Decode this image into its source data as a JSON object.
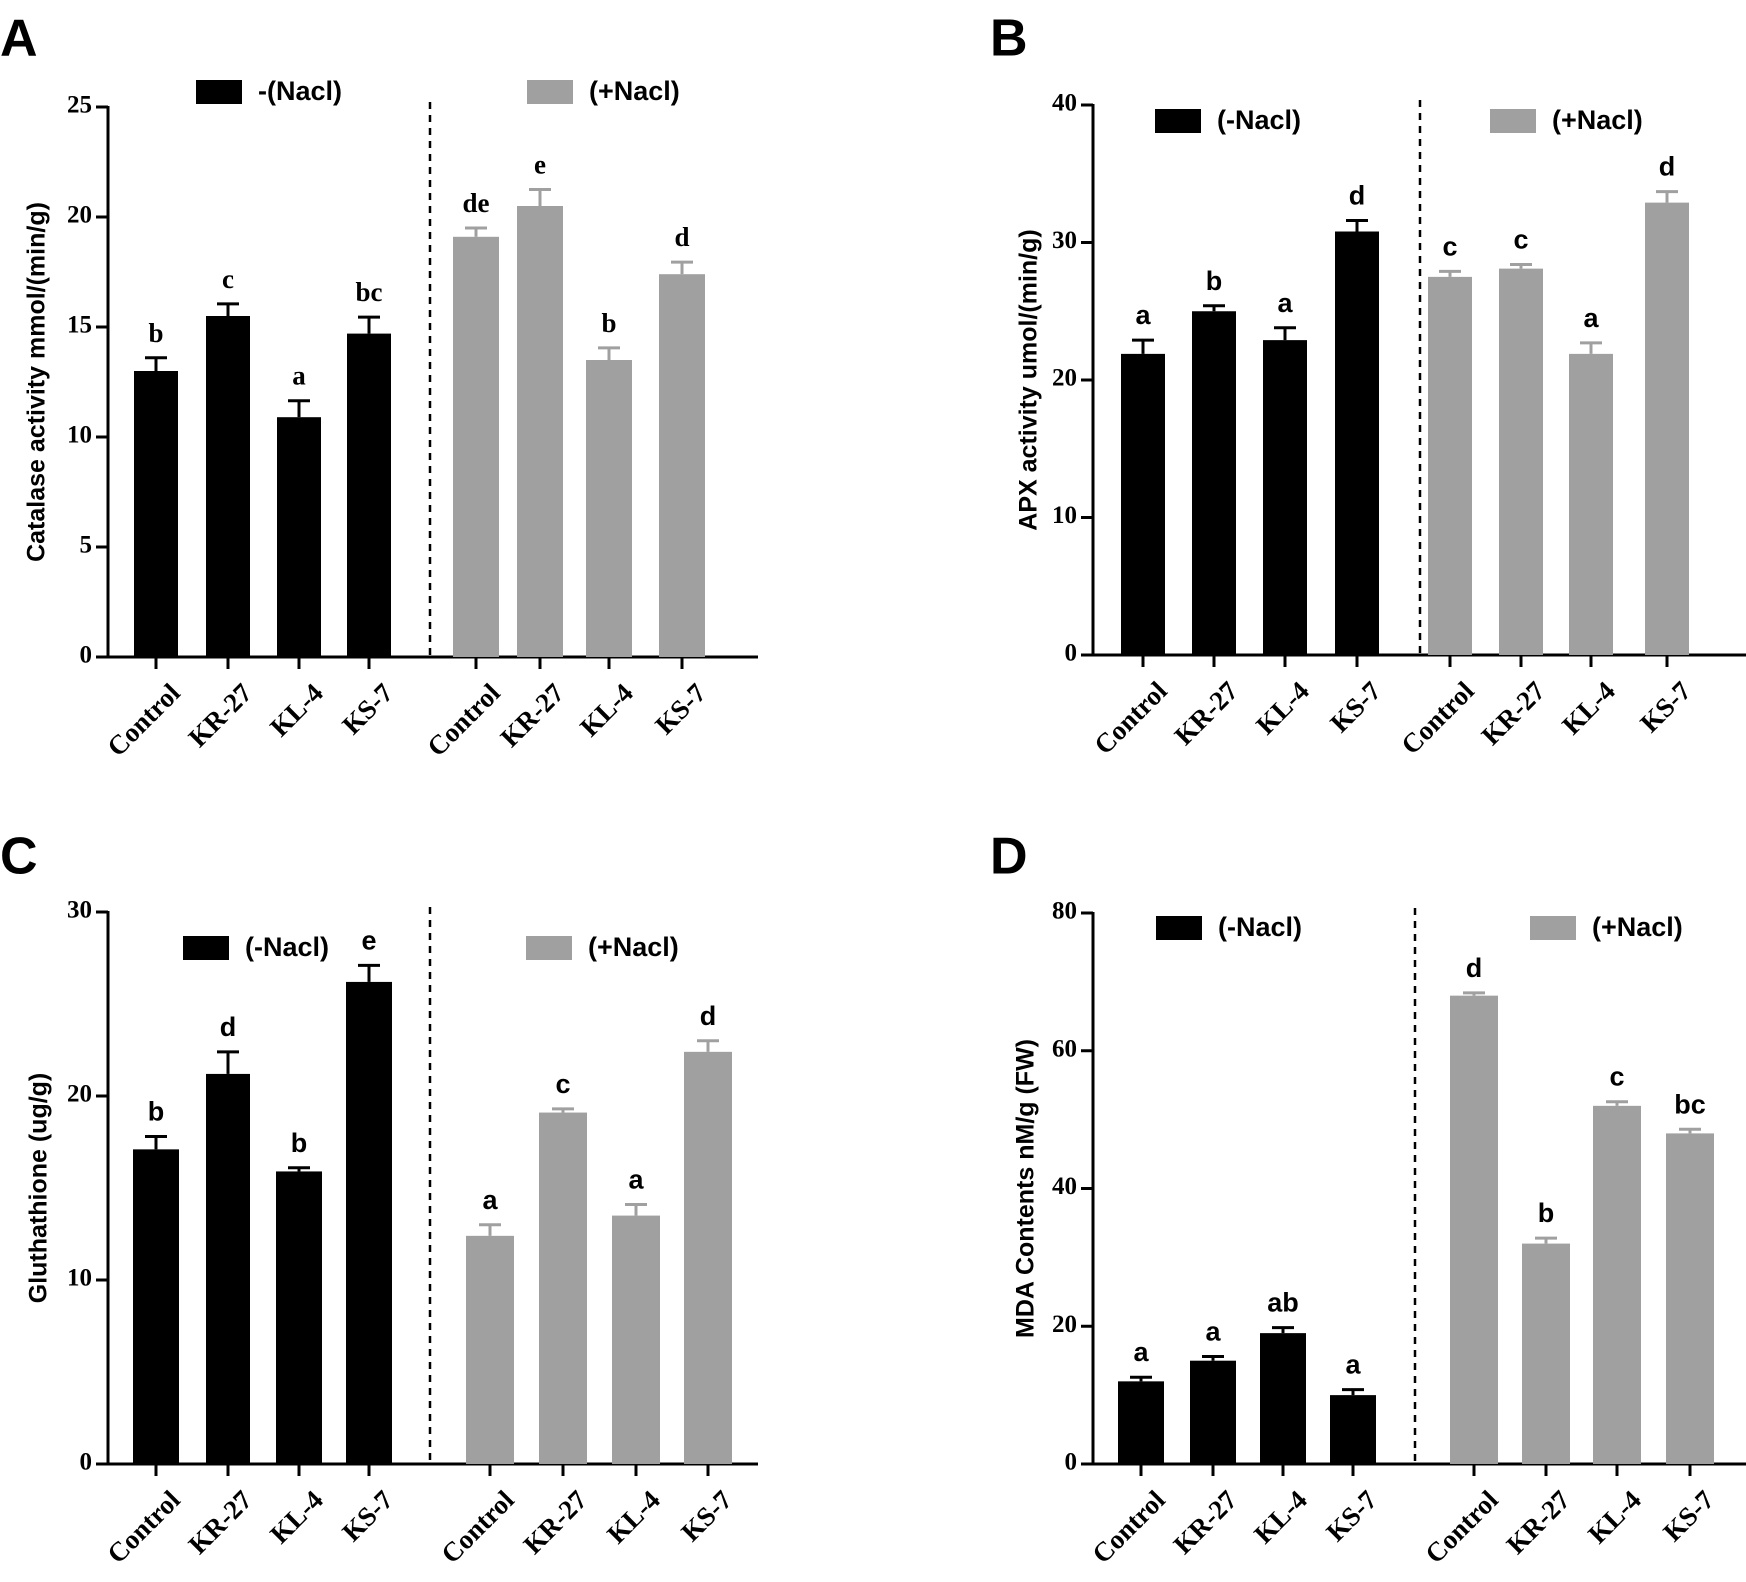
{
  "chart_data": [
    {
      "panel": "A",
      "type": "bar",
      "ylabel": "Catalase activity mmol/(min/g)",
      "ylim": [
        0,
        25
      ],
      "yticks": [
        0,
        5,
        10,
        15,
        20,
        25
      ],
      "legend": [
        "-(Nacl)",
        "(+Nacl)"
      ],
      "colors": {
        "minus": "#000000",
        "plus": "#a0a0a0"
      },
      "groups": [
        {
          "name": "-(Nacl)",
          "categories": [
            "Control",
            "KR-27",
            "KL-4",
            "KS-7"
          ],
          "values": [
            13.0,
            15.5,
            10.9,
            14.7
          ],
          "errors": [
            0.6,
            0.55,
            0.75,
            0.75
          ],
          "letters": [
            "b",
            "c",
            "a",
            "bc"
          ]
        },
        {
          "name": "(+Nacl)",
          "categories": [
            "Control",
            "KR-27",
            "KL-4",
            "KS-7"
          ],
          "values": [
            19.1,
            20.5,
            13.5,
            17.4
          ],
          "errors": [
            0.4,
            0.75,
            0.55,
            0.55
          ],
          "letters": [
            "de",
            "e",
            "b",
            "d"
          ]
        }
      ]
    },
    {
      "panel": "B",
      "type": "bar",
      "ylabel": "APX activity umol/(min/g)",
      "ylim": [
        0,
        40
      ],
      "yticks": [
        0,
        10,
        20,
        30,
        40
      ],
      "legend": [
        "(-Nacl)",
        "(+Nacl)"
      ],
      "colors": {
        "minus": "#000000",
        "plus": "#a0a0a0"
      },
      "groups": [
        {
          "name": "(-Nacl)",
          "categories": [
            "Control",
            "KR-27",
            "KL-4",
            "KS-7"
          ],
          "values": [
            21.9,
            25.0,
            22.9,
            30.8
          ],
          "errors": [
            1.0,
            0.4,
            0.9,
            0.8
          ],
          "letters": [
            "a",
            "b",
            "a",
            "d"
          ]
        },
        {
          "name": "(+Nacl)",
          "categories": [
            "Control",
            "KR-27",
            "KL-4",
            "KS-7"
          ],
          "values": [
            27.5,
            28.1,
            21.9,
            32.9
          ],
          "errors": [
            0.4,
            0.3,
            0.8,
            0.8
          ],
          "letters": [
            "c",
            "c",
            "a",
            "d"
          ]
        }
      ]
    },
    {
      "panel": "C",
      "type": "bar",
      "ylabel": "Gluthathione (ug/g)",
      "ylim": [
        0,
        30
      ],
      "yticks": [
        0,
        10,
        20,
        30
      ],
      "legend": [
        "(-Nacl)",
        "(+Nacl)"
      ],
      "colors": {
        "minus": "#000000",
        "plus": "#a0a0a0"
      },
      "groups": [
        {
          "name": "(-Nacl)",
          "categories": [
            "Control",
            "KR-27",
            "KL-4",
            "KS-7"
          ],
          "values": [
            17.1,
            21.2,
            15.9,
            26.2
          ],
          "errors": [
            0.7,
            1.2,
            0.2,
            0.9
          ],
          "letters": [
            "b",
            "d",
            "b",
            "e"
          ]
        },
        {
          "name": "(+Nacl)",
          "categories": [
            "Control",
            "KR-27",
            "KL-4",
            "KS-7"
          ],
          "values": [
            12.4,
            19.1,
            13.5,
            22.4
          ],
          "errors": [
            0.6,
            0.2,
            0.6,
            0.6
          ],
          "letters": [
            "a",
            "c",
            "a",
            "d"
          ]
        }
      ]
    },
    {
      "panel": "D",
      "type": "bar",
      "ylabel": "MDA Contents nM/g (FW)",
      "ylim": [
        0,
        80
      ],
      "yticks": [
        0,
        20,
        40,
        60,
        80
      ],
      "legend": [
        "(-Nacl)",
        "(+Nacl)"
      ],
      "colors": {
        "minus": "#000000",
        "plus": "#a0a0a0"
      },
      "groups": [
        {
          "name": "(-Nacl)",
          "categories": [
            "Control",
            "KR-27",
            "KL-4",
            "KS-7"
          ],
          "values": [
            12.0,
            15.0,
            19.0,
            10.0
          ],
          "errors": [
            0.6,
            0.6,
            0.8,
            0.8
          ],
          "letters": [
            "a",
            "a",
            "ab",
            "a"
          ]
        },
        {
          "name": "(+Nacl)",
          "categories": [
            "Control",
            "KR-27",
            "KL-4",
            "KS-7"
          ],
          "values": [
            68.0,
            32.0,
            52.0,
            48.0
          ],
          "errors": [
            0.4,
            0.8,
            0.6,
            0.6
          ],
          "letters": [
            "d",
            "b",
            "c",
            "bc"
          ]
        }
      ]
    }
  ]
}
